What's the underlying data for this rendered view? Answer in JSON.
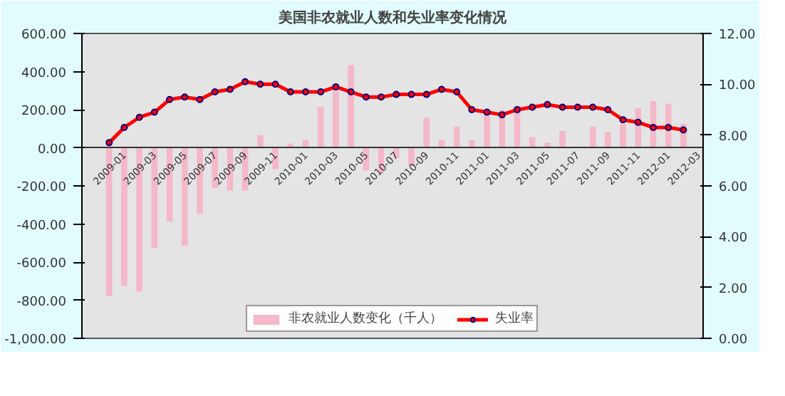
{
  "chart_data": {
    "type": "bar",
    "title": "美国非农就业人数和失业率变化情况",
    "categories": [
      "2009-01",
      null,
      "2009-03",
      null,
      "2009-05",
      null,
      "2009-07",
      null,
      "2009-09",
      null,
      "2009-11",
      null,
      "2010-01",
      null,
      "2010-03",
      null,
      "2010-05",
      null,
      "2010-07",
      null,
      "2010-09",
      null,
      "2010-11",
      null,
      "2011-01",
      null,
      "2011-03",
      null,
      "2011-05",
      null,
      "2011-07",
      null,
      "2011-09",
      null,
      "2011-11",
      null,
      "2012-01",
      null,
      "2012-03"
    ],
    "series": [
      {
        "name": "非农就业人数变化（千人）",
        "type": "bar",
        "color": "#f4b8c8",
        "values": [
          -777,
          -723,
          -753,
          -525,
          -386,
          -513,
          -345,
          -210,
          -222,
          -222,
          64,
          -110,
          20,
          39,
          213,
          322,
          432,
          -117,
          -130,
          -51,
          -93,
          156,
          37,
          108,
          37,
          196,
          196,
          218,
          54,
          24,
          86,
          0,
          108,
          80,
          122,
          205,
          244,
          230,
          122
        ]
      },
      {
        "name": "失业率",
        "type": "line",
        "axis": "y2",
        "color": "#ff0000",
        "marker": "circle",
        "values": [
          7.7,
          8.3,
          8.7,
          8.9,
          9.4,
          9.5,
          9.4,
          9.7,
          9.8,
          10.1,
          10.0,
          10.0,
          9.7,
          9.7,
          9.7,
          9.9,
          9.7,
          9.5,
          9.5,
          9.6,
          9.6,
          9.6,
          9.8,
          9.7,
          9.0,
          8.9,
          8.8,
          9.0,
          9.1,
          9.2,
          9.1,
          9.1,
          9.1,
          9.0,
          8.6,
          8.5,
          8.3,
          8.3,
          8.2
        ]
      }
    ],
    "ylim": [
      -1000,
      600
    ],
    "yticks": [
      {
        "value": -1000,
        "label": "-1,000.00"
      },
      {
        "value": -800,
        "label": "-800.00"
      },
      {
        "value": -600,
        "label": "-600.00"
      },
      {
        "value": -400,
        "label": "-400.00"
      },
      {
        "value": -200,
        "label": "-200.00"
      },
      {
        "value": 0,
        "label": "0.00"
      },
      {
        "value": 200,
        "label": "200.00"
      },
      {
        "value": 400,
        "label": "400.00"
      },
      {
        "value": 600,
        "label": "600.00"
      }
    ],
    "y2lim": [
      0,
      12
    ],
    "y2ticks": [
      {
        "value": 0,
        "label": "0.00"
      },
      {
        "value": 2,
        "label": "2.00"
      },
      {
        "value": 4,
        "label": "4.00"
      },
      {
        "value": 6,
        "label": "6.00"
      },
      {
        "value": 8,
        "label": "8.00"
      },
      {
        "value": 10,
        "label": "10.00"
      },
      {
        "value": 12,
        "label": "12.00"
      }
    ],
    "grid": false,
    "legend": "bottom"
  }
}
